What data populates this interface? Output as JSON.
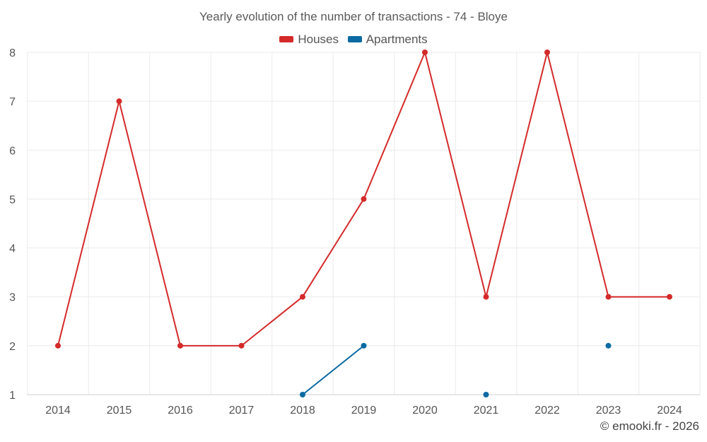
{
  "chart_data": {
    "type": "line",
    "title": "Yearly evolution of the number of transactions - 74 - Bloye",
    "xlabel": "",
    "ylabel": "",
    "categories": [
      "2014",
      "2015",
      "2016",
      "2017",
      "2018",
      "2019",
      "2020",
      "2021",
      "2022",
      "2023",
      "2024"
    ],
    "ylim": [
      1,
      8
    ],
    "yticks": [
      1,
      2,
      3,
      4,
      5,
      6,
      7,
      8
    ],
    "grid": true,
    "legend_position": "top-center",
    "series": [
      {
        "name": "Houses",
        "color": "#d42a2a",
        "values": [
          2,
          7,
          2,
          2,
          3,
          5,
          8,
          3,
          8,
          3,
          3
        ]
      },
      {
        "name": "Apartments",
        "color": "#0b6aa2",
        "values": [
          null,
          null,
          null,
          null,
          1,
          2,
          null,
          1,
          null,
          2,
          null
        ]
      }
    ]
  },
  "footer": {
    "credit": "© emooki.fr - 2026"
  }
}
